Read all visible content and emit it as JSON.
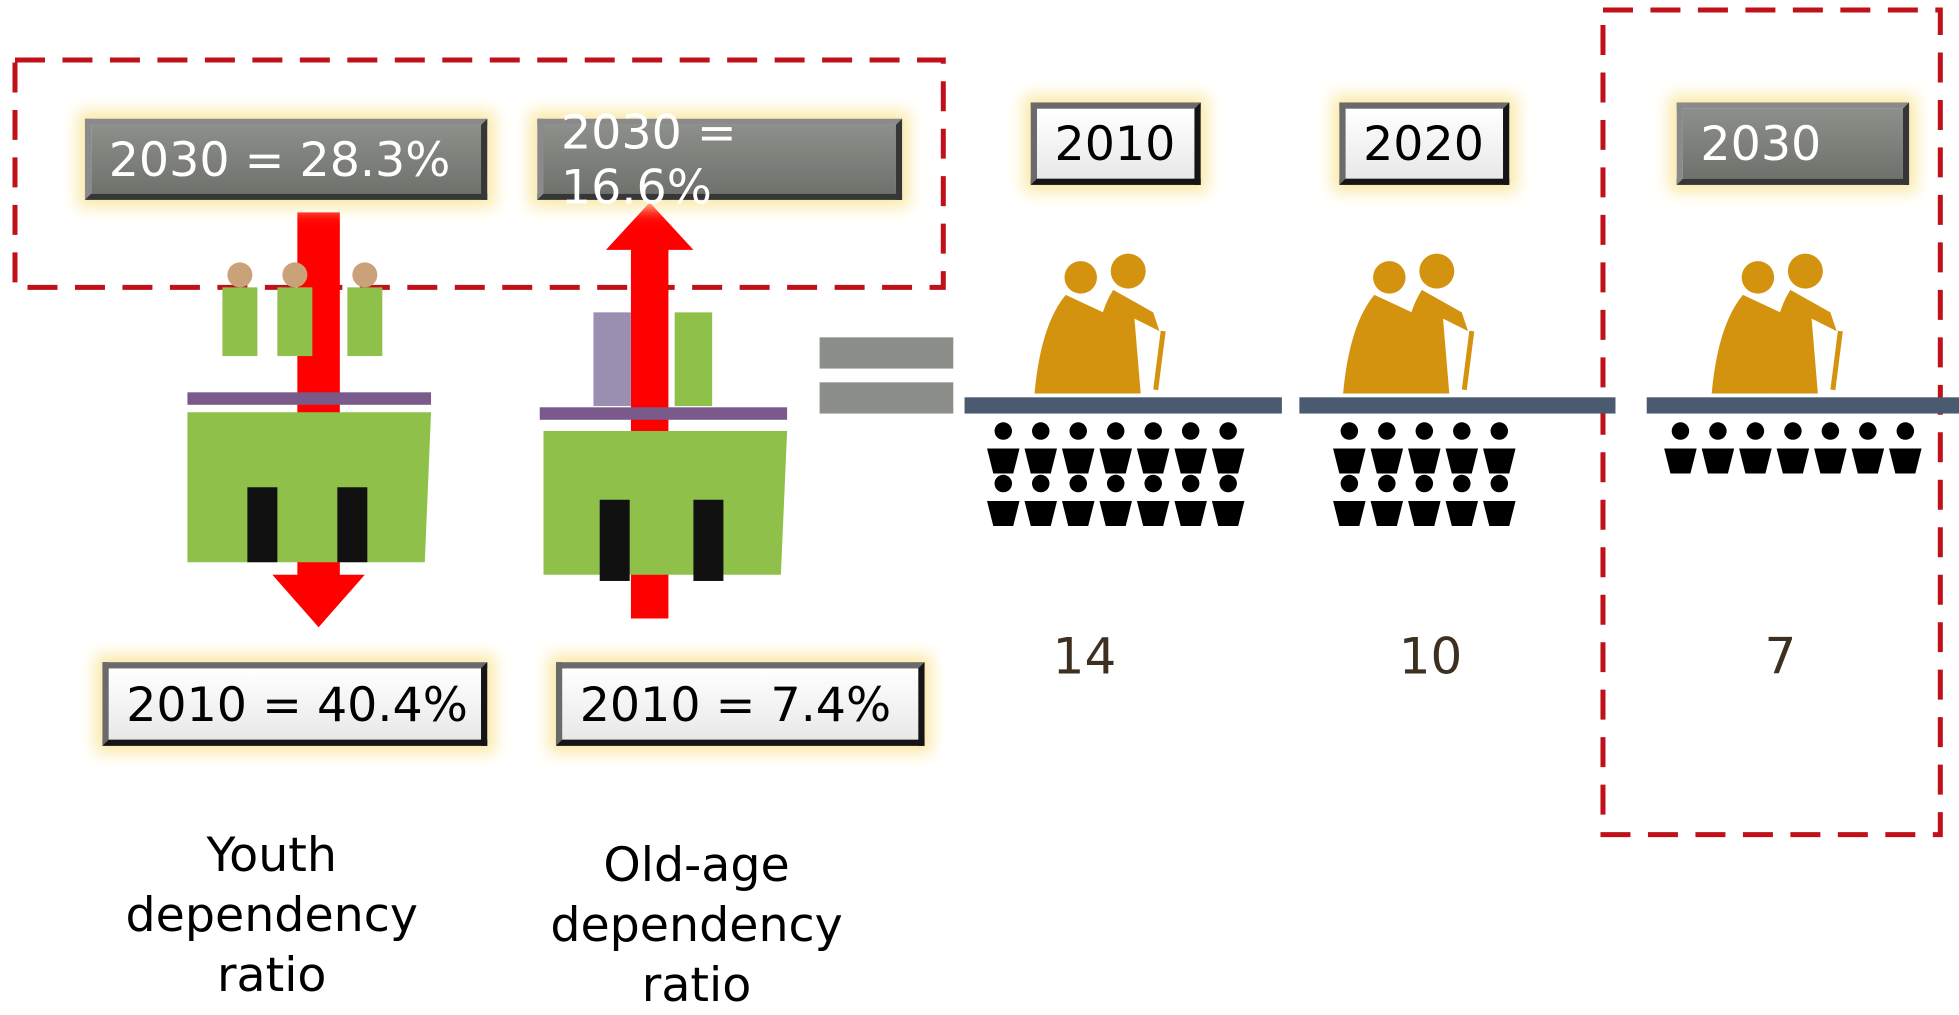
{
  "youth": {
    "label": "Youth dependency ratio",
    "box_2030": "2030 = 28.3%",
    "box_2010": "2010 = 40.4%"
  },
  "old_age": {
    "label": "Old-age dependency ratio",
    "box_2030": "2030 = 16.6%",
    "box_2010": "2010 = 7.4%"
  },
  "support": [
    {
      "year": "2010",
      "ratio": 14
    },
    {
      "year": "2020",
      "ratio": 10
    },
    {
      "year": "2030",
      "ratio": 7
    }
  ]
}
